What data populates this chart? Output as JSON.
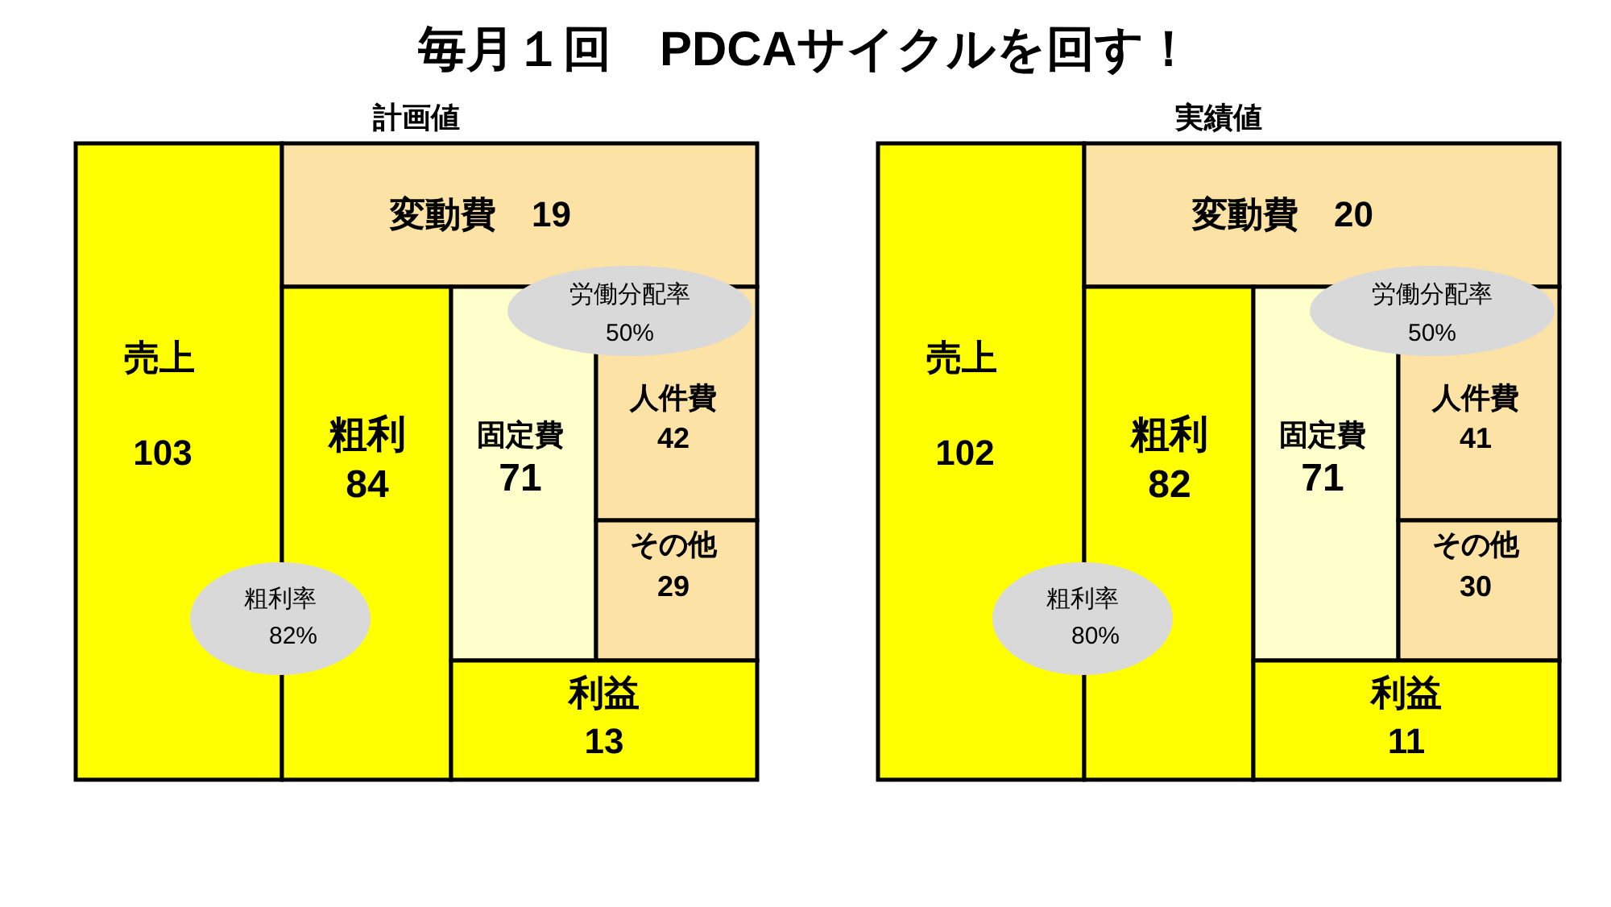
{
  "chart_data": [
    {
      "type": "other",
      "title": "毎月１回　PDCAサイクルを回す！",
      "subtitle": "計画値",
      "categories": [
        "売上",
        "変動費",
        "粗利",
        "固定費",
        "人件費",
        "その他",
        "利益"
      ],
      "values": [
        103,
        19,
        84,
        71,
        42,
        29,
        13
      ],
      "colors": [
        "#ffff00",
        "#fde2a6",
        "#ffff00",
        "#ffffcc",
        "#fde2a6",
        "#fde2a6",
        "#ffff00"
      ],
      "data_labels": true,
      "annotations": [
        "粗利率 82%",
        "労働分配率 50%"
      ]
    },
    {
      "type": "other",
      "subtitle": "実績値",
      "categories": [
        "売上",
        "変動費",
        "粗利",
        "固定費",
        "人件費",
        "その他",
        "利益"
      ],
      "values": [
        102,
        20,
        82,
        71,
        41,
        30,
        11
      ],
      "colors": [
        "#ffff00",
        "#fde2a6",
        "#ffff00",
        "#ffffcc",
        "#fde2a6",
        "#fde2a6",
        "#ffff00"
      ],
      "data_labels": true,
      "annotations": [
        "粗利率 80%",
        "労働分配率 50%"
      ]
    }
  ]
}
